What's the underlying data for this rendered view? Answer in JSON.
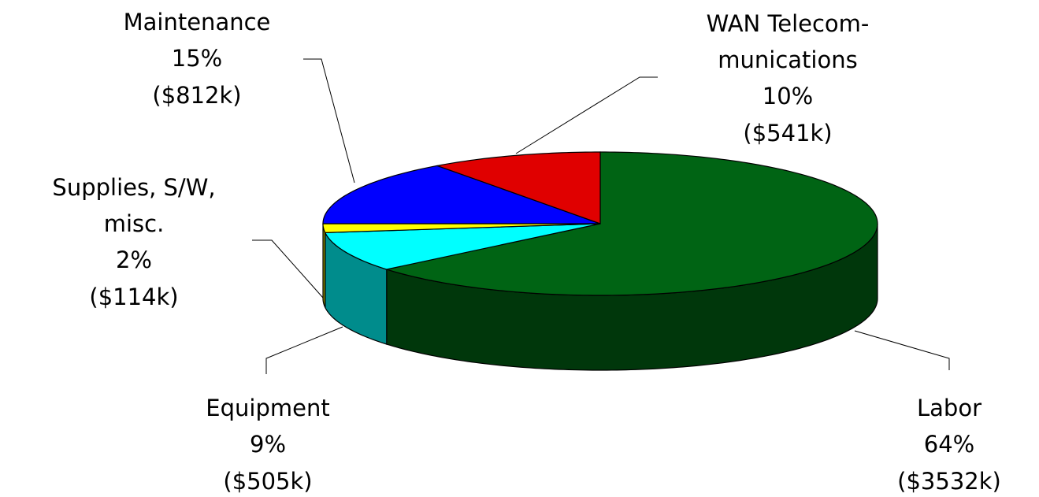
{
  "chart_data": {
    "type": "pie",
    "categories": [
      "Labor",
      "Equipment",
      "Supplies, S/W,\nmisc.",
      "Maintenance",
      "WAN Telecom-\nmunications"
    ],
    "values": [
      64,
      9,
      2,
      15,
      10
    ],
    "value_labels": [
      "64%",
      "9%",
      "2%",
      "15%",
      "10%"
    ],
    "amount_labels": [
      "($3532k)",
      "($505k)",
      "($114k)",
      "($812k)",
      "($541k)"
    ],
    "colors": [
      "#006414",
      "#00ffff",
      "#ffff00",
      "#0000ff",
      "#e00000"
    ]
  }
}
